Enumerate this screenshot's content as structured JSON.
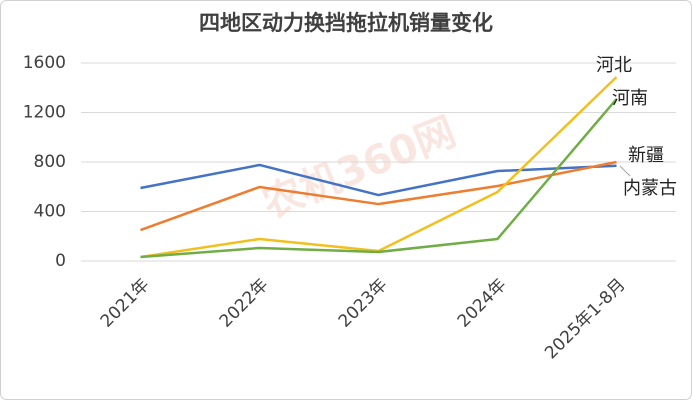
{
  "chart_data": {
    "type": "line",
    "title": "四地区动力换挡拖拉机销量变化",
    "watermark": "农机360网",
    "categories": [
      "2021年",
      "2022年",
      "2023年",
      "2024年",
      "2025年1-8月"
    ],
    "series": [
      {
        "name": "内蒙古",
        "color": "#4472c4",
        "values": [
          590,
          776,
          533,
          727,
          770
        ]
      },
      {
        "name": "新疆",
        "color": "#ed7d31",
        "values": [
          250,
          598,
          460,
          606,
          800
        ]
      },
      {
        "name": "河北",
        "color": "#f2c01e",
        "values": [
          32,
          178,
          81,
          558,
          1487
        ]
      },
      {
        "name": "河南",
        "color": "#70ad47",
        "values": [
          32,
          105,
          73,
          178,
          1309
        ]
      }
    ],
    "ylim": [
      0,
      1600
    ],
    "yticks": [
      0,
      400,
      800,
      1200,
      1600
    ],
    "grid": true
  }
}
